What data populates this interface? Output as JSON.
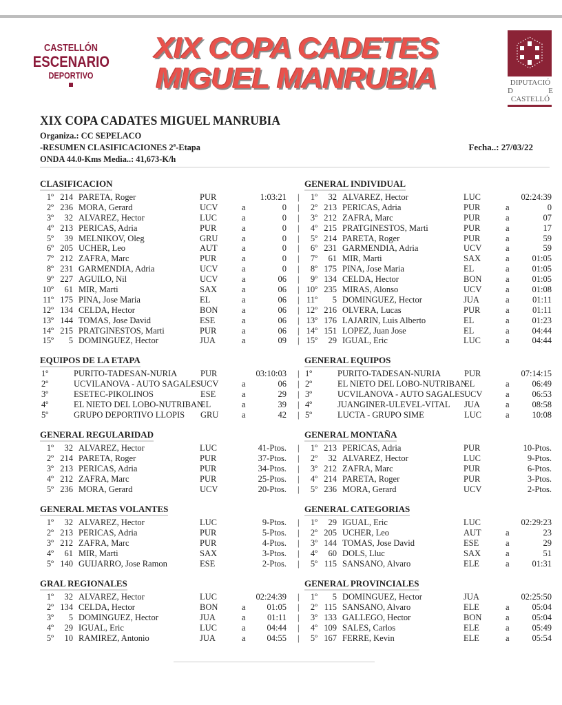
{
  "logos": {
    "left": {
      "line1": "CASTELLÓN",
      "line2": "ESCENARIO",
      "line3": "DEPORTIVO"
    },
    "banner": {
      "line1": "XIX COPA CADETES",
      "line2": "MIGUEL MANRUBIA"
    },
    "right": {
      "line1": "DIPUTACIÓ",
      "d": "D",
      "e": "E",
      "line3": "CASTELLÓ"
    },
    "colors": {
      "logo_maroon": "#8b1a3a",
      "banner_red": "#e9524c"
    }
  },
  "header": {
    "title": "XIX COPA CADATES MIGUEL MANRUBIA",
    "organiza": "Organiza.: CC SEPELACO",
    "resumen": "-RESUMEN CLASIFICACIONES 2ª-Etapa",
    "onda": "ONDA  44.0-Kms    Media..: 41,673-K/h",
    "fecha": "Fecha..: 27/03/22"
  },
  "sections": [
    {
      "title": "CLASIFICACION",
      "type": "ind",
      "rows": [
        [
          "1º",
          "214",
          "PARETA, Roger",
          "PUR",
          "",
          "1:03:21"
        ],
        [
          "2º",
          "236",
          "MORA, Gerard",
          "UCV",
          "a",
          "0"
        ],
        [
          "3º",
          "32",
          "ALVAREZ, Hector",
          "LUC",
          "a",
          "0"
        ],
        [
          "4º",
          "213",
          "PERICAS, Adria",
          "PUR",
          "a",
          "0"
        ],
        [
          "5º",
          "39",
          "MELNIKOV, Oleg",
          "GRU",
          "a",
          "0"
        ],
        [
          "6º",
          "205",
          "UCHER, Leo",
          "AUT",
          "a",
          "0"
        ],
        [
          "7º",
          "212",
          "ZAFRA, Marc",
          "PUR",
          "a",
          "0"
        ],
        [
          "8º",
          "231",
          "GARMENDIA, Adria",
          "UCV",
          "a",
          "0"
        ],
        [
          "9º",
          "227",
          "AGUILO, Nil",
          "UCV",
          "a",
          "06"
        ],
        [
          "10º",
          "61",
          "MIR, Marti",
          "SAX",
          "a",
          "06"
        ],
        [
          "11º",
          "175",
          "PINA, Jose Maria",
          "EL",
          "a",
          "06"
        ],
        [
          "12º",
          "134",
          "CELDA, Hector",
          "BON",
          "a",
          "06"
        ],
        [
          "13º",
          "144",
          "TOMAS, Jose David",
          "ESE",
          "a",
          "06"
        ],
        [
          "14º",
          "215",
          "PRATGINESTOS, Marti",
          "PUR",
          "a",
          "06"
        ],
        [
          "15º",
          "5",
          "DOMINGUEZ, Hector",
          "JUA",
          "a",
          "09"
        ]
      ]
    },
    {
      "title": "GENERAL INDIVIDUAL",
      "type": "ind",
      "rows": [
        [
          "1º",
          "32",
          "ALVAREZ, Hector",
          "LUC",
          "",
          "02:24:39"
        ],
        [
          "2º",
          "213",
          "PERICAS, Adria",
          "PUR",
          "a",
          "0"
        ],
        [
          "3º",
          "212",
          "ZAFRA, Marc",
          "PUR",
          "a",
          "07"
        ],
        [
          "4º",
          "215",
          "PRATGINESTOS, Marti",
          "PUR",
          "a",
          "17"
        ],
        [
          "5º",
          "214",
          "PARETA, Roger",
          "PUR",
          "a",
          "59"
        ],
        [
          "6º",
          "231",
          "GARMENDIA, Adria",
          "UCV",
          "a",
          "59"
        ],
        [
          "7º",
          "61",
          "MIR, Marti",
          "SAX",
          "a",
          "01:05"
        ],
        [
          "8º",
          "175",
          "PINA, Jose Maria",
          "EL",
          "a",
          "01:05"
        ],
        [
          "9º",
          "134",
          "CELDA, Hector",
          "BON",
          "a",
          "01:05"
        ],
        [
          "10º",
          "235",
          "MIRAS, Alonso",
          "UCV",
          "a",
          "01:08"
        ],
        [
          "11º",
          "5",
          "DOMINGUEZ, Hector",
          "JUA",
          "a",
          "01:11"
        ],
        [
          "12º",
          "216",
          "OLVERA, Lucas",
          "PUR",
          "a",
          "01:11"
        ],
        [
          "13º",
          "176",
          "LAJARIN, Luis Alberto",
          "EL",
          "a",
          "01:23"
        ],
        [
          "14º",
          "151",
          "LOPEZ, Juan Jose",
          "EL",
          "a",
          "04:44"
        ],
        [
          "15º",
          "29",
          "IGUAL, Eric",
          "LUC",
          "a",
          "04:44"
        ]
      ]
    },
    {
      "title": "EQUIPOS DE LA ETAPA",
      "type": "team",
      "rows": [
        [
          "1º",
          "",
          "PURITO-TADESAN-NURIA",
          "PUR",
          "",
          "03:10:03"
        ],
        [
          "2º",
          "",
          "UCVILANOVA - AUTO SAGALES",
          "UCV",
          "a",
          "06"
        ],
        [
          "3º",
          "",
          "ESETEC-PIKOLINOS",
          "ESE",
          "a",
          "29"
        ],
        [
          "4º",
          "",
          "EL NIETO DEL LOBO-NUTRIBAN",
          "EL",
          "a",
          "39"
        ],
        [
          "5º",
          "",
          "GRUPO DEPORTIVO LLOPIS",
          "GRU",
          "a",
          "42"
        ]
      ]
    },
    {
      "title": "GENERAL EQUIPOS",
      "type": "team",
      "rows": [
        [
          "1º",
          "",
          "PURITO-TADESAN-NURIA",
          "PUR",
          "",
          "07:14:15"
        ],
        [
          "2º",
          "",
          "EL NIETO DEL LOBO-NUTRIBAN",
          "EL",
          "a",
          "06:49"
        ],
        [
          "3º",
          "",
          "UCVILANOVA - AUTO SAGALES",
          "UCV",
          "a",
          "06:53"
        ],
        [
          "4º",
          "",
          "JUANGINER-ULEVEL-VITAL",
          "JUA",
          "a",
          "08:58"
        ],
        [
          "5º",
          "",
          "LUCTA - GRUPO SIME",
          "LUC",
          "a",
          "10:08"
        ]
      ]
    },
    {
      "title": "GENERAL REGULARIDAD",
      "type": "ind",
      "rows": [
        [
          "1º",
          "32",
          "ALVAREZ, Hector",
          "LUC",
          "",
          "41-Ptos."
        ],
        [
          "2º",
          "214",
          "PARETA, Roger",
          "PUR",
          "",
          "37-Ptos."
        ],
        [
          "3º",
          "213",
          "PERICAS, Adria",
          "PUR",
          "",
          "34-Ptos."
        ],
        [
          "4º",
          "212",
          "ZAFRA, Marc",
          "PUR",
          "",
          "25-Ptos."
        ],
        [
          "5º",
          "236",
          "MORA, Gerard",
          "UCV",
          "",
          "20-Ptos."
        ]
      ]
    },
    {
      "title": "GENERAL MONTAÑA",
      "type": "ind",
      "rows": [
        [
          "1º",
          "213",
          "PERICAS, Adria",
          "PUR",
          "",
          "10-Ptos."
        ],
        [
          "2º",
          "32",
          "ALVAREZ, Hector",
          "LUC",
          "",
          "9-Ptos."
        ],
        [
          "3º",
          "212",
          "ZAFRA, Marc",
          "PUR",
          "",
          "6-Ptos."
        ],
        [
          "4º",
          "214",
          "PARETA, Roger",
          "PUR",
          "",
          "3-Ptos."
        ],
        [
          "5º",
          "236",
          "MORA, Gerard",
          "UCV",
          "",
          "2-Ptos."
        ]
      ]
    },
    {
      "title": "GENERAL METAS VOLANTES",
      "type": "ind",
      "rows": [
        [
          "1º",
          "32",
          "ALVAREZ, Hector",
          "LUC",
          "",
          "9-Ptos."
        ],
        [
          "2º",
          "213",
          "PERICAS, Adria",
          "PUR",
          "",
          "5-Ptos."
        ],
        [
          "3º",
          "212",
          "ZAFRA, Marc",
          "PUR",
          "",
          "4-Ptos."
        ],
        [
          "4º",
          "61",
          "MIR, Marti",
          "SAX",
          "",
          "3-Ptos."
        ],
        [
          "5º",
          "140",
          "GUIJARRO, Jose Ramon",
          "ESE",
          "",
          "2-Ptos."
        ]
      ]
    },
    {
      "title": "GENERAL CATEGORIAS",
      "type": "ind",
      "rows": [
        [
          "1º",
          "29",
          "IGUAL, Eric",
          "LUC",
          "",
          "02:29:23"
        ],
        [
          "2º",
          "205",
          "UCHER, Leo",
          "AUT",
          "a",
          "23"
        ],
        [
          "3º",
          "144",
          "TOMAS, Jose David",
          "ESE",
          "a",
          "29"
        ],
        [
          "4º",
          "60",
          "DOLS, Lluc",
          "SAX",
          "a",
          "51"
        ],
        [
          "5º",
          "115",
          "SANSANO, Alvaro",
          "ELE",
          "a",
          "01:31"
        ]
      ]
    },
    {
      "title": "GRAL REGIONALES",
      "type": "ind",
      "rows": [
        [
          "1º",
          "32",
          "ALVAREZ, Hector",
          "LUC",
          "",
          "02:24:39"
        ],
        [
          "2º",
          "134",
          "CELDA, Hector",
          "BON",
          "a",
          "01:05"
        ],
        [
          "3º",
          "5",
          "DOMINGUEZ, Hector",
          "JUA",
          "a",
          "01:11"
        ],
        [
          "4º",
          "29",
          "IGUAL, Eric",
          "LUC",
          "a",
          "04:44"
        ],
        [
          "5º",
          "10",
          "RAMIREZ, Antonio",
          "JUA",
          "a",
          "04:55"
        ]
      ]
    },
    {
      "title": "GENERAL PROVINCIALES",
      "type": "ind",
      "rows": [
        [
          "1º",
          "5",
          "DOMINGUEZ, Hector",
          "JUA",
          "",
          "02:25:50"
        ],
        [
          "2º",
          "115",
          "SANSANO, Alvaro",
          "ELE",
          "a",
          "05:04"
        ],
        [
          "3º",
          "133",
          "GALLEGO, Hector",
          "BON",
          "a",
          "05:04"
        ],
        [
          "4º",
          "109",
          "SALES, Carlos",
          "ELE",
          "a",
          "05:49"
        ],
        [
          "5º",
          "167",
          "FERRE, Kevin",
          "ELE",
          "a",
          "05:54"
        ]
      ]
    }
  ]
}
